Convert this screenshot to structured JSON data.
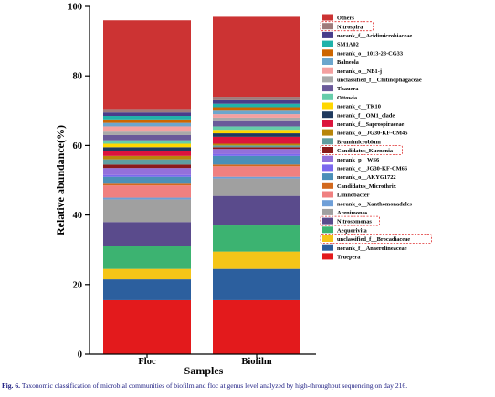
{
  "caption": {
    "label": "Fig. 6.",
    "text": "Taxonomic classification of microbial communities of biofilm and floc at genus level analyzed by high-throughput sequencing on day 216."
  },
  "chart_data": {
    "type": "bar",
    "stacked": true,
    "title": "",
    "xlabel": "Samples",
    "ylabel": "Relative abundance(%)",
    "ylim": [
      0,
      100
    ],
    "yticks": [
      0,
      20,
      40,
      60,
      80,
      100
    ],
    "categories": [
      "Floc",
      "Biofilm"
    ],
    "legend_position": "right",
    "highlighted_legend_entries": [
      "Nitrospira",
      "Candidatus_Kuenenia",
      "Nitrosomonas",
      "unclassified_f__Brocadiaceae"
    ],
    "series": [
      {
        "name": "Truepera",
        "color": "#e31a1c",
        "values": [
          15.5,
          15.5
        ]
      },
      {
        "name": "norank_f__Anaerolineaceae",
        "color": "#2c5f9e",
        "values": [
          6.0,
          9.0
        ]
      },
      {
        "name": "unclassified_f__Brocadiaceae",
        "color": "#f5c518",
        "values": [
          3.0,
          5.0
        ]
      },
      {
        "name": "Aequorivita",
        "color": "#3cb371",
        "values": [
          6.5,
          7.5
        ]
      },
      {
        "name": "Nitrosomonas",
        "color": "#5a4b8c",
        "values": [
          7.0,
          8.5
        ]
      },
      {
        "name": "Arenimonas",
        "color": "#a0a0a0",
        "values": [
          6.5,
          5.0
        ]
      },
      {
        "name": "norank_o__Xanthomonadales",
        "color": "#6f9fd8",
        "values": [
          0.5,
          0.5
        ]
      },
      {
        "name": "Limnobacter",
        "color": "#f08080",
        "values": [
          3.5,
          3.0
        ]
      },
      {
        "name": "Candidatus_Microthrix",
        "color": "#d2691e",
        "values": [
          0.5,
          0.5
        ]
      },
      {
        "name": "norank_o__AKYG1722",
        "color": "#4a8fb8",
        "values": [
          2.0,
          2.5
        ]
      },
      {
        "name": "norank_c__JG30-KF-CM66",
        "color": "#7b68ee",
        "values": [
          0.5,
          0.5
        ]
      },
      {
        "name": "norank_p__WS6",
        "color": "#9370db",
        "values": [
          2.0,
          1.5
        ]
      },
      {
        "name": "Candidatus_Kuenenia",
        "color": "#8b1a1a",
        "values": [
          1.0,
          0.5
        ]
      },
      {
        "name": "Brumimicrobium",
        "color": "#5f9ea0",
        "values": [
          1.5,
          0.5
        ]
      },
      {
        "name": "norank_o__JG30-KF-CM45",
        "color": "#b8860b",
        "values": [
          1.0,
          0.5
        ]
      },
      {
        "name": "norank_f__Saprospiraceae",
        "color": "#dc143c",
        "values": [
          1.5,
          2.0
        ]
      },
      {
        "name": "norank_f__OM1_clade",
        "color": "#1f3a5f",
        "values": [
          1.0,
          1.0
        ]
      },
      {
        "name": "norank_c__TK10",
        "color": "#ffd700",
        "values": [
          1.0,
          1.0
        ]
      },
      {
        "name": "Ottowia",
        "color": "#66cdaa",
        "values": [
          1.0,
          1.0
        ]
      },
      {
        "name": "Thauera",
        "color": "#6a5a9a",
        "values": [
          1.5,
          1.5
        ]
      },
      {
        "name": "unclassified_f__Chitinophagaceae",
        "color": "#a9a9a9",
        "values": [
          1.0,
          1.0
        ]
      },
      {
        "name": "norank_o__NB1-j",
        "color": "#f4a0a0",
        "values": [
          1.5,
          1.0
        ]
      },
      {
        "name": "Balneola",
        "color": "#6ca6cd",
        "values": [
          1.0,
          1.0
        ]
      },
      {
        "name": "norank_o__1013-28-CG33",
        "color": "#cd6600",
        "values": [
          1.0,
          1.0
        ]
      },
      {
        "name": "SM1A02",
        "color": "#20b2aa",
        "values": [
          1.0,
          1.0
        ]
      },
      {
        "name": "norank_f__Acidimicrobiaceae",
        "color": "#483d8b",
        "values": [
          1.0,
          1.0
        ]
      },
      {
        "name": "Nitrospira",
        "color": "#9e7b7b",
        "values": [
          1.0,
          1.0
        ]
      },
      {
        "name": "Others",
        "color": "#cc3333",
        "values": [
          25.5,
          23.0
        ]
      }
    ]
  }
}
